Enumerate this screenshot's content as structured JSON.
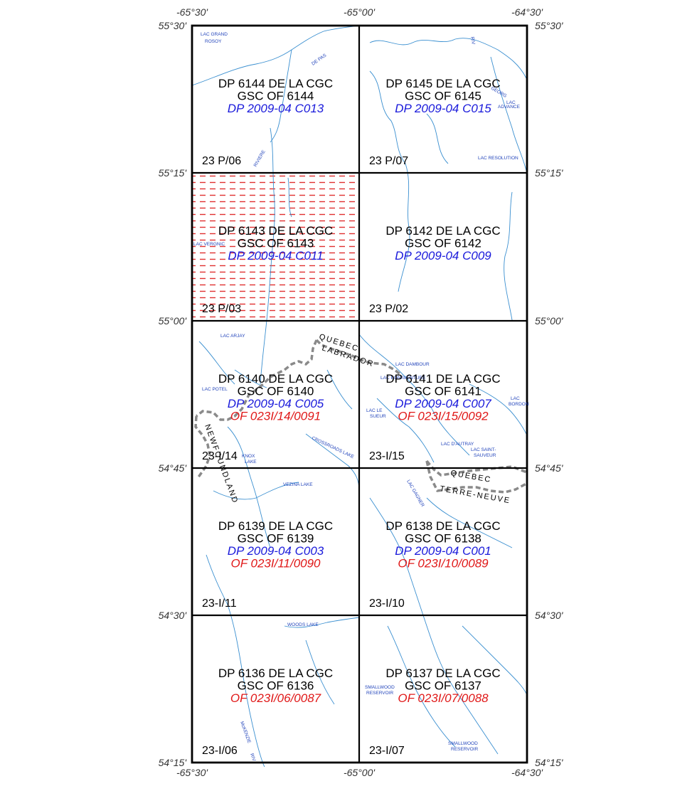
{
  "map": {
    "lat_labels": [
      "55°30'",
      "55°15'",
      "55°00'",
      "54°45'",
      "54°30'",
      "54°15'"
    ],
    "lon_labels": [
      "-65°30'",
      "-65°00'",
      "-64°30'"
    ],
    "tiles": [
      {
        "row": 0,
        "col": 0,
        "code": "23 P/06",
        "lines": [
          {
            "text": "DP 6144 DE LA CGC",
            "color": "black"
          },
          {
            "text": "GSC OF 6144",
            "color": "black"
          },
          {
            "text": "DP 2009-04 C013",
            "color": "blue"
          }
        ]
      },
      {
        "row": 0,
        "col": 1,
        "code": "23 P/07",
        "lines": [
          {
            "text": "DP 6145 DE LA CGC",
            "color": "black"
          },
          {
            "text": "GSC OF 6145",
            "color": "black"
          },
          {
            "text": "DP 2009-04 C015",
            "color": "blue"
          }
        ]
      },
      {
        "row": 1,
        "col": 0,
        "code": "23 P/03",
        "hatched": true,
        "lines": [
          {
            "text": "DP 6143 DE LA CGC",
            "color": "black"
          },
          {
            "text": "GSC OF 6143",
            "color": "black"
          },
          {
            "text": "DP 2009-04 C011",
            "color": "blue"
          }
        ]
      },
      {
        "row": 1,
        "col": 1,
        "code": "23 P/02",
        "lines": [
          {
            "text": "DP 6142 DE LA CGC",
            "color": "black"
          },
          {
            "text": "GSC OF 6142",
            "color": "black"
          },
          {
            "text": "DP 2009-04 C009",
            "color": "blue"
          }
        ]
      },
      {
        "row": 2,
        "col": 0,
        "code": "23-I/14",
        "lines": [
          {
            "text": "DP 6140 DE LA CGC",
            "color": "black"
          },
          {
            "text": "GSC OF 6140",
            "color": "black"
          },
          {
            "text": "DP 2009-04 C005",
            "color": "blue"
          },
          {
            "text": "OF 023I/14/0091",
            "color": "red"
          }
        ]
      },
      {
        "row": 2,
        "col": 1,
        "code": "23-I/15",
        "lines": [
          {
            "text": "DP 6141 DE LA CGC",
            "color": "black"
          },
          {
            "text": "GSC OF 6141",
            "color": "black"
          },
          {
            "text": "DP 2009-04 C007",
            "color": "blue"
          },
          {
            "text": "OF 023I/15/0092",
            "color": "red"
          }
        ]
      },
      {
        "row": 3,
        "col": 0,
        "code": "23-I/11",
        "lines": [
          {
            "text": "DP 6139 DE LA CGC",
            "color": "black"
          },
          {
            "text": "GSC OF 6139",
            "color": "black"
          },
          {
            "text": "DP 2009-04 C003",
            "color": "blue"
          },
          {
            "text": "OF 023I/11/0090",
            "color": "red"
          }
        ]
      },
      {
        "row": 3,
        "col": 1,
        "code": "23-I/10",
        "lines": [
          {
            "text": "DP 6138 DE LA CGC",
            "color": "black"
          },
          {
            "text": "GSC OF 6138",
            "color": "black"
          },
          {
            "text": "DP 2009-04 C001",
            "color": "blue"
          },
          {
            "text": "OF 023I/10/0089",
            "color": "red"
          }
        ]
      },
      {
        "row": 4,
        "col": 0,
        "code": "23-I/06",
        "lines": [
          {
            "text": "DP 6136 DE LA CGC",
            "color": "black"
          },
          {
            "text": "GSC OF 6136",
            "color": "black"
          },
          {
            "text": "OF 023I/06/0087",
            "color": "red"
          }
        ]
      },
      {
        "row": 4,
        "col": 1,
        "code": "23-I/07",
        "lines": [
          {
            "text": "DP 6137 DE LA CGC",
            "color": "black"
          },
          {
            "text": "GSC OF 6137",
            "color": "black"
          },
          {
            "text": "OF 023I/07/0088",
            "color": "red"
          }
        ]
      }
    ],
    "place_names": [
      "LAC GRAND",
      "ROSOY",
      "DE PAS",
      "RIVIERE",
      "RIV",
      "GEORG",
      "LAC",
      "ADVANCE",
      "LAC RESOLUTION",
      "LAC VERGNIC",
      "LAC ARJAY",
      "LAC POTEL",
      "LAC DAMBOUR",
      "LAC BONAVENTURE",
      "LAC LE",
      "SUEUR",
      "LAC",
      "BORDON",
      "LAC D'AUTRAY",
      "LAC SAINT-",
      "SAUVEUR",
      "KNOX",
      "LAKE",
      "CROSSROADS LAKE",
      "VEZINA LAKE",
      "LAC GAGNER",
      "WOODS LAKE",
      "SMALLWOOD",
      "RESERVOIR",
      "McKENZIE",
      "RIV",
      "SMALLWOOD",
      "RESERVOIR"
    ],
    "border_labels": {
      "qc_north": "QUEBEC",
      "lab": "LABRADOR",
      "nfld": "NEWFOUNDLAND",
      "qc_south": "QUEBEC",
      "terre_neuve": "TERRE-NEUVE"
    },
    "colors": {
      "blue": "#1a1adb",
      "red": "#e01818",
      "black": "#000000",
      "water": "#3a8fd0",
      "border": "#8a8a8a",
      "hatch": "#e03030"
    }
  }
}
